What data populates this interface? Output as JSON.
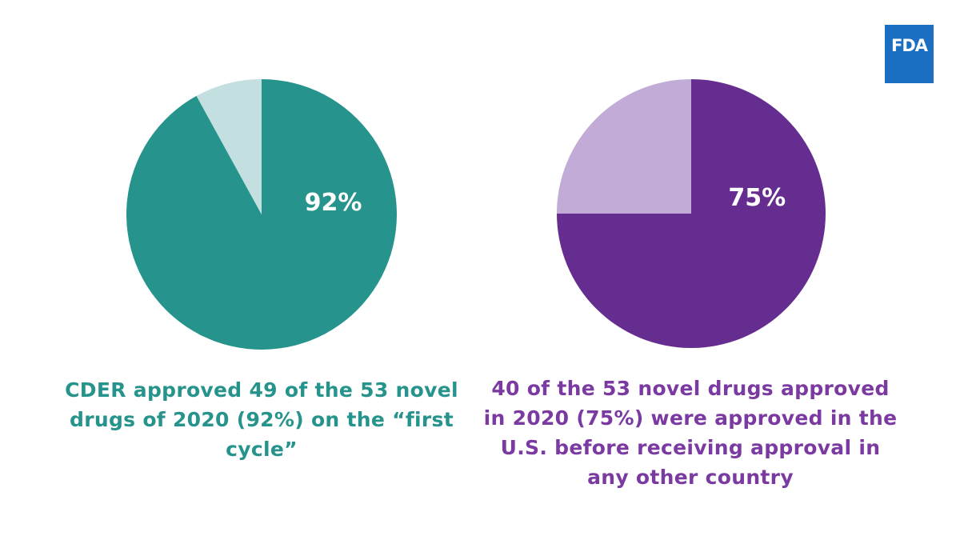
{
  "logo": {
    "text": "FDA",
    "color": "#1a6fc2"
  },
  "chart_data": [
    {
      "type": "pie",
      "slices": [
        {
          "value": 92,
          "color": "#26948c",
          "label": "92%"
        },
        {
          "value": 8,
          "color": "#c4dfdf",
          "label": ""
        }
      ],
      "caption": "CDER approved 49 of the 53 novel drugs of 2020 (92%) on the “first cycle”",
      "caption_color": "#26948c"
    },
    {
      "type": "pie",
      "slices": [
        {
          "value": 75,
          "color": "#652d90",
          "label": "75%"
        },
        {
          "value": 25,
          "color": "#c2abd6",
          "label": ""
        }
      ],
      "caption": "40 of the 53 novel drugs approved in 2020 (75%) were approved in the U.S. before receiving approval in any other country",
      "caption_color": "#7b3aa1"
    }
  ]
}
